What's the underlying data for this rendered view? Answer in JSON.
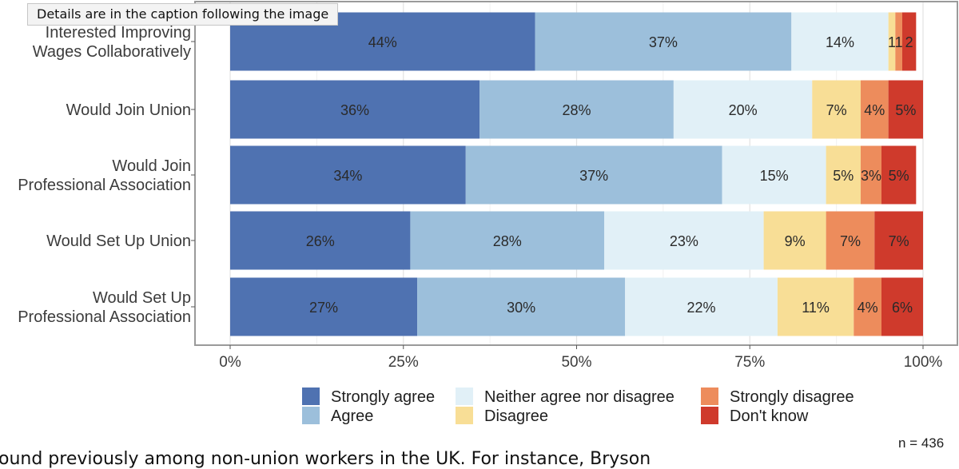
{
  "tooltip": "Details are in the caption following the image",
  "caption_fragment": "ound previously among non-union workers in the UK. For instance, Bryson",
  "chart_data": {
    "type": "bar",
    "orientation": "horizontal",
    "stacked": true,
    "title": "",
    "xlabel": "",
    "ylabel": "",
    "xlim": [
      0,
      100
    ],
    "x_ticks": [
      "0%",
      "25%",
      "50%",
      "75%",
      "100%"
    ],
    "x_tick_values": [
      0,
      25,
      50,
      75,
      100
    ],
    "categories": [
      [
        "Interested Improving",
        "Wages Collaboratively"
      ],
      [
        "Would Join Union"
      ],
      [
        "Would Join",
        "Professional Association"
      ],
      [
        "Would Set Up Union"
      ],
      [
        "Would Set Up",
        "Professional Association"
      ]
    ],
    "series": [
      {
        "name": "Strongly agree",
        "color": "#4f72b1",
        "values": [
          44,
          36,
          34,
          26,
          27
        ],
        "labels": [
          "44%",
          "36%",
          "34%",
          "26%",
          "27%"
        ]
      },
      {
        "name": "Agree",
        "color": "#9cbfdb",
        "values": [
          37,
          28,
          37,
          28,
          30
        ],
        "labels": [
          "37%",
          "28%",
          "37%",
          "28%",
          "30%"
        ]
      },
      {
        "name": "Neither agree nor disagree",
        "color": "#e1f0f7",
        "values": [
          14,
          20,
          15,
          23,
          22
        ],
        "labels": [
          "14%",
          "20%",
          "15%",
          "23%",
          "22%"
        ]
      },
      {
        "name": "Disagree",
        "color": "#f8de96",
        "values": [
          1,
          7,
          5,
          9,
          11
        ],
        "labels": [
          "1",
          "7%",
          "5%",
          "9%",
          "11%"
        ]
      },
      {
        "name": "Strongly disagree",
        "color": "#ed8c5c",
        "values": [
          1,
          4,
          3,
          7,
          4
        ],
        "labels": [
          "1",
          "4%",
          "3%",
          "7%",
          "4%"
        ]
      },
      {
        "name": "Don't know",
        "color": "#cf3a2c",
        "values": [
          2,
          5,
          5,
          7,
          6
        ],
        "labels": [
          "2",
          "5%",
          "5%",
          "7%",
          "6%"
        ]
      }
    ],
    "legend": {
      "position": "bottom",
      "columns": [
        [
          "Strongly agree",
          "Agree"
        ],
        [
          "Neither agree nor disagree",
          "Disagree"
        ],
        [
          "Strongly disagree",
          "Don't know"
        ]
      ]
    },
    "annotation": "n = 436",
    "grid": true
  }
}
